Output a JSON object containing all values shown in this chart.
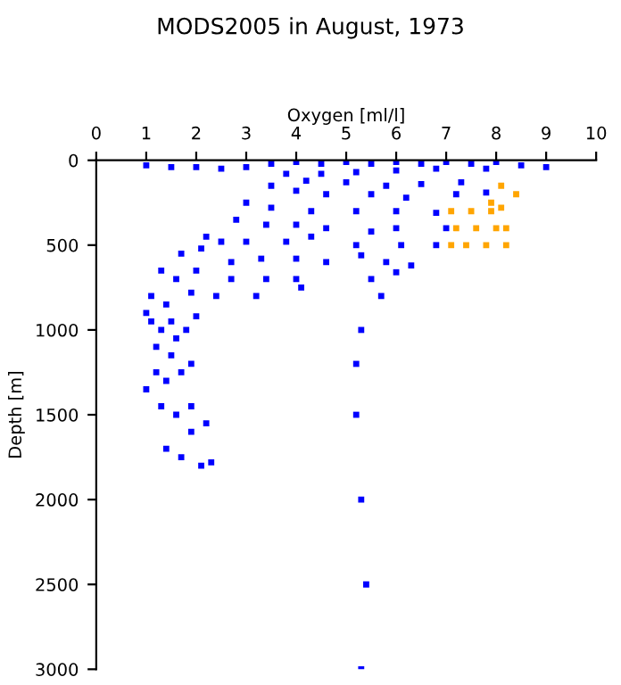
{
  "chart_data": {
    "type": "scatter",
    "title": "MODS2005 in August, 1973",
    "xlabel": "Oxygen [ml/l]",
    "ylabel": "Depth [m]",
    "xlim": [
      0,
      10
    ],
    "xticks": [
      0,
      1,
      2,
      3,
      4,
      5,
      6,
      7,
      8,
      9,
      10
    ],
    "ylim": [
      3000,
      0
    ],
    "yticks": [
      0,
      500,
      1000,
      1500,
      2000,
      2500,
      3000
    ],
    "grid": false,
    "legend": false,
    "marker": "square",
    "series": [
      {
        "color": "#0000ff",
        "x": [
          1.0,
          1.5,
          2.0,
          2.5,
          3.0,
          3.5,
          4.0,
          4.5,
          5.0,
          5.5,
          6.0,
          6.5,
          7.0,
          7.5,
          8.0,
          8.5,
          9.0,
          3.8,
          4.5,
          5.2,
          6.0,
          6.8,
          7.8,
          4.2,
          5.0,
          5.8,
          6.5,
          7.3,
          3.5,
          4.0,
          4.6,
          5.5,
          6.2,
          7.2,
          7.8,
          3.0,
          3.5,
          4.3,
          5.2,
          6.0,
          6.8,
          2.8,
          3.4,
          4.0,
          4.6,
          5.5,
          6.0,
          7.0,
          2.2,
          2.5,
          3.0,
          3.8,
          4.3,
          5.2,
          6.1,
          6.8,
          1.7,
          2.1,
          2.7,
          3.3,
          4.0,
          4.6,
          5.3,
          5.8,
          6.3,
          1.3,
          1.6,
          2.0,
          2.7,
          3.4,
          4.0,
          5.5,
          6.0,
          1.1,
          1.4,
          1.9,
          2.4,
          3.2,
          4.1,
          5.7,
          1.0,
          1.5,
          2.0,
          1.1,
          1.3,
          1.6,
          1.8,
          1.2,
          1.5,
          1.2,
          1.4,
          1.7,
          1.9,
          1.0,
          1.3,
          1.6,
          1.9,
          1.9,
          2.2,
          1.4,
          1.7,
          2.1,
          2.3,
          5.3,
          5.2,
          5.2,
          5.3,
          5.4,
          5.3
        ],
        "values": [
          30,
          40,
          40,
          50,
          40,
          20,
          10,
          20,
          10,
          20,
          10,
          20,
          10,
          20,
          10,
          30,
          40,
          80,
          80,
          70,
          60,
          50,
          50,
          120,
          130,
          150,
          140,
          130,
          150,
          180,
          200,
          200,
          220,
          200,
          190,
          250,
          280,
          300,
          300,
          300,
          310,
          350,
          380,
          380,
          400,
          420,
          400,
          400,
          450,
          480,
          480,
          480,
          450,
          500,
          500,
          500,
          550,
          520,
          600,
          580,
          580,
          600,
          560,
          600,
          620,
          650,
          700,
          650,
          700,
          700,
          700,
          700,
          660,
          800,
          850,
          780,
          800,
          800,
          750,
          800,
          900,
          950,
          920,
          950,
          1000,
          1050,
          1000,
          1100,
          1150,
          1250,
          1300,
          1250,
          1200,
          1350,
          1450,
          1500,
          1450,
          1600,
          1550,
          1700,
          1750,
          1800,
          1780,
          1000,
          1200,
          1500,
          2000,
          2500,
          3000
        ]
      },
      {
        "color": "#ffa500",
        "x": [
          8.1,
          8.4,
          7.1,
          7.5,
          7.9,
          8.1,
          7.2,
          7.6,
          8.0,
          8.2,
          7.1,
          7.4,
          7.8,
          8.2,
          7.9
        ],
        "values": [
          150,
          200,
          300,
          300,
          300,
          280,
          400,
          400,
          400,
          400,
          500,
          500,
          500,
          500,
          250
        ]
      }
    ]
  }
}
